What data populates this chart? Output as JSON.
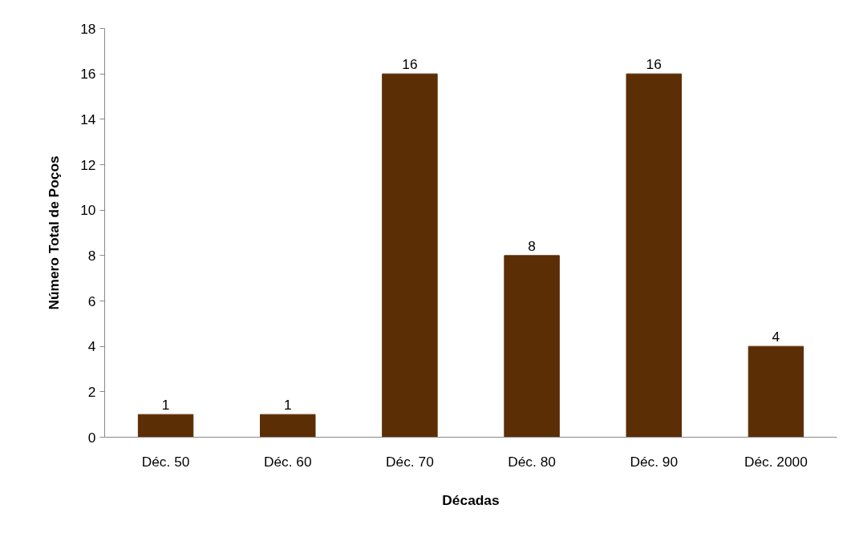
{
  "chart_data": {
    "type": "bar",
    "xlabel": "Décadas",
    "ylabel": "Número Total de Poços",
    "categories": [
      "Déc. 50",
      "Déc. 60",
      "Déc. 70",
      "Déc. 80",
      "Déc. 90",
      "Déc. 2000"
    ],
    "values": [
      1,
      1,
      16,
      8,
      16,
      4
    ],
    "color": "#5c2e06",
    "ylim": [
      0,
      18
    ],
    "yticks": [
      0,
      2,
      4,
      6,
      8,
      10,
      12,
      14,
      16,
      18
    ],
    "grid": false,
    "data_labels": true
  }
}
